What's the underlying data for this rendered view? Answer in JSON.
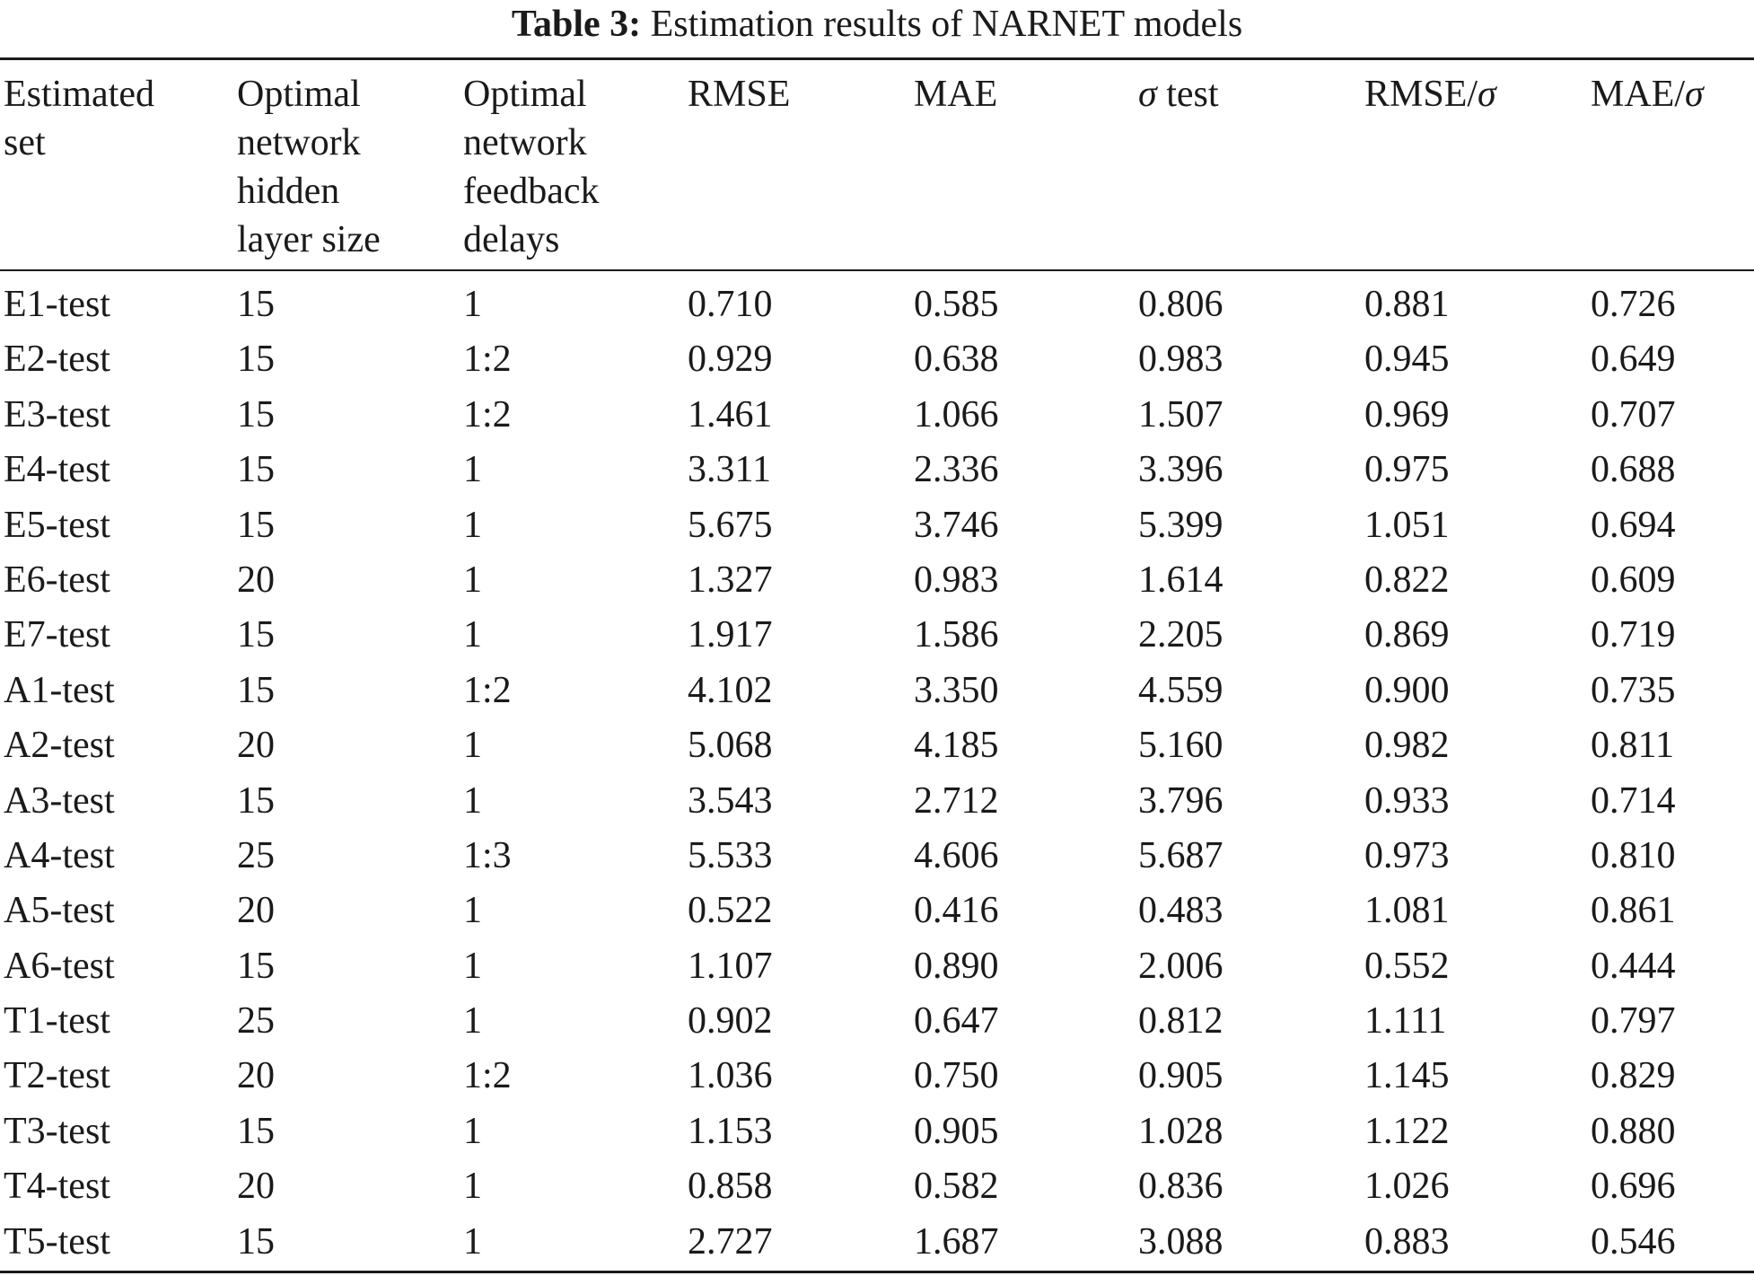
{
  "caption": {
    "label": "Table 3:",
    "text": "Estimation results of NARNET models"
  },
  "columns": [
    "Estimated\nset",
    "Optimal\nnetwork\nhidden\nlayer size",
    "Optimal\nnetwork\nfeedback\ndelays",
    "RMSE",
    "MAE",
    "σ test",
    "RMSE/σ",
    "MAE/σ"
  ],
  "rows": [
    [
      "E1-test",
      "15",
      "1",
      "0.710",
      "0.585",
      "0.806",
      "0.881",
      "0.726"
    ],
    [
      "E2-test",
      "15",
      "1:2",
      "0.929",
      "0.638",
      "0.983",
      "0.945",
      "0.649"
    ],
    [
      "E3-test",
      "15",
      "1:2",
      "1.461",
      "1.066",
      "1.507",
      "0.969",
      "0.707"
    ],
    [
      "E4-test",
      "15",
      "1",
      "3.311",
      "2.336",
      "3.396",
      "0.975",
      "0.688"
    ],
    [
      "E5-test",
      "15",
      "1",
      "5.675",
      "3.746",
      "5.399",
      "1.051",
      "0.694"
    ],
    [
      "E6-test",
      "20",
      "1",
      "1.327",
      "0.983",
      "1.614",
      "0.822",
      "0.609"
    ],
    [
      "E7-test",
      "15",
      "1",
      "1.917",
      "1.586",
      "2.205",
      "0.869",
      "0.719"
    ],
    [
      "A1-test",
      "15",
      "1:2",
      "4.102",
      "3.350",
      "4.559",
      "0.900",
      "0.735"
    ],
    [
      "A2-test",
      "20",
      "1",
      "5.068",
      "4.185",
      "5.160",
      "0.982",
      "0.811"
    ],
    [
      "A3-test",
      "15",
      "1",
      "3.543",
      "2.712",
      "3.796",
      "0.933",
      "0.714"
    ],
    [
      "A4-test",
      "25",
      "1:3",
      "5.533",
      "4.606",
      "5.687",
      "0.973",
      "0.810"
    ],
    [
      "A5-test",
      "20",
      "1",
      "0.522",
      "0.416",
      "0.483",
      "1.081",
      "0.861"
    ],
    [
      "A6-test",
      "15",
      "1",
      "1.107",
      "0.890",
      "2.006",
      "0.552",
      "0.444"
    ],
    [
      "T1-test",
      "25",
      "1",
      "0.902",
      "0.647",
      "0.812",
      "1.111",
      "0.797"
    ],
    [
      "T2-test",
      "20",
      "1:2",
      "1.036",
      "0.750",
      "0.905",
      "1.145",
      "0.829"
    ],
    [
      "T3-test",
      "15",
      "1",
      "1.153",
      "0.905",
      "1.028",
      "1.122",
      "0.880"
    ],
    [
      "T4-test",
      "20",
      "1",
      "0.858",
      "0.582",
      "0.836",
      "1.026",
      "0.696"
    ],
    [
      "T5-test",
      "15",
      "1",
      "2.727",
      "1.687",
      "3.088",
      "0.883",
      "0.546"
    ]
  ]
}
